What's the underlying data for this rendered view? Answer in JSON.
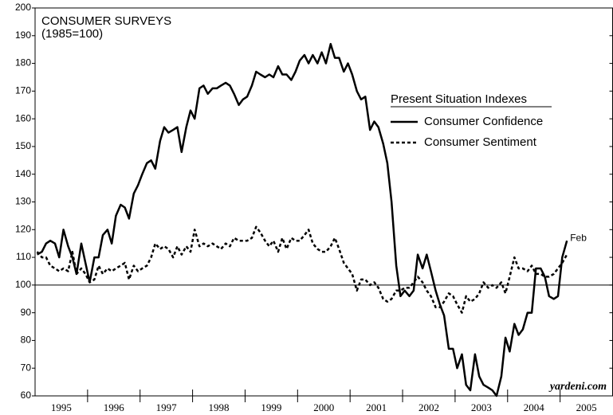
{
  "chart_data": {
    "type": "line",
    "title": "CONSUMER SURVEYS",
    "subtitle": "(1985=100)",
    "legend_title": "Present Situation Indexes",
    "annotation": "Feb",
    "source": "yardeni.com",
    "x": [
      1995.04,
      1995.13,
      1995.21,
      1995.29,
      1995.38,
      1995.46,
      1995.54,
      1995.63,
      1995.71,
      1995.79,
      1995.88,
      1995.96,
      1996.04,
      1996.13,
      1996.21,
      1996.29,
      1996.38,
      1996.46,
      1996.54,
      1996.63,
      1996.71,
      1996.79,
      1996.88,
      1996.96,
      1997.04,
      1997.13,
      1997.21,
      1997.29,
      1997.38,
      1997.46,
      1997.54,
      1997.63,
      1997.71,
      1997.79,
      1997.88,
      1997.96,
      1998.04,
      1998.13,
      1998.21,
      1998.29,
      1998.38,
      1998.46,
      1998.54,
      1998.63,
      1998.71,
      1998.79,
      1998.88,
      1998.96,
      1999.04,
      1999.13,
      1999.21,
      1999.29,
      1999.38,
      1999.46,
      1999.54,
      1999.63,
      1999.71,
      1999.79,
      1999.88,
      1999.96,
      2000.04,
      2000.13,
      2000.21,
      2000.29,
      2000.38,
      2000.46,
      2000.54,
      2000.63,
      2000.71,
      2000.79,
      2000.88,
      2000.96,
      2001.04,
      2001.13,
      2001.21,
      2001.29,
      2001.38,
      2001.46,
      2001.54,
      2001.63,
      2001.71,
      2001.79,
      2001.88,
      2001.96,
      2002.04,
      2002.13,
      2002.21,
      2002.29,
      2002.38,
      2002.46,
      2002.54,
      2002.63,
      2002.71,
      2002.79,
      2002.88,
      2002.96,
      2003.04,
      2003.13,
      2003.21,
      2003.29,
      2003.38,
      2003.46,
      2003.54,
      2003.63,
      2003.71,
      2003.79,
      2003.88,
      2003.96,
      2004.04,
      2004.13,
      2004.21,
      2004.29,
      2004.38,
      2004.46,
      2004.54,
      2004.63,
      2004.71,
      2004.79,
      2004.88,
      2004.96,
      2005.04,
      2005.13
    ],
    "series": [
      {
        "name": "Consumer Confidence",
        "color": "#000000",
        "dash": "solid",
        "values": [
          111,
          112,
          115,
          116,
          115,
          110,
          120,
          114,
          110,
          104,
          115,
          108,
          101,
          110,
          110,
          118,
          120,
          115,
          125,
          129,
          128,
          124,
          133,
          136,
          140,
          144,
          145,
          142,
          152,
          157,
          155,
          156,
          157,
          148,
          157,
          163,
          160,
          171,
          172,
          169,
          171,
          171,
          172,
          173,
          172,
          169,
          165,
          167,
          168,
          172,
          177,
          176,
          175,
          176,
          175,
          179,
          176,
          176,
          174,
          177,
          181,
          183,
          180,
          183,
          180,
          184,
          180,
          187,
          182,
          182,
          177,
          180,
          176,
          170,
          167,
          168,
          156,
          159,
          157,
          151,
          144,
          130,
          107,
          96,
          98,
          96,
          98,
          111,
          106,
          111,
          105,
          98,
          93,
          89,
          77,
          77,
          70,
          75,
          64,
          62,
          75,
          67,
          64,
          63,
          62,
          60,
          67,
          81,
          76,
          86,
          82,
          84,
          90,
          90,
          106,
          106,
          103,
          96,
          95,
          96,
          110,
          116
        ]
      },
      {
        "name": "Consumer Sentiment",
        "color": "#000000",
        "dash": "dashed",
        "values": [
          112,
          110,
          110,
          107,
          106,
          105,
          106,
          105,
          112,
          104,
          106,
          104,
          101,
          102,
          107,
          104,
          106,
          105,
          106,
          107,
          108,
          102,
          107,
          105,
          106,
          107,
          110,
          115,
          113,
          114,
          113,
          110,
          114,
          111,
          114,
          112,
          120,
          114,
          115,
          114,
          115,
          114,
          113,
          115,
          114,
          117,
          116,
          116,
          116,
          117,
          121,
          119,
          116,
          114,
          116,
          112,
          117,
          113,
          117,
          116,
          116,
          118,
          120,
          115,
          113,
          112,
          112,
          114,
          117,
          113,
          108,
          106,
          104,
          98,
          102,
          102,
          100,
          101,
          99,
          95,
          94,
          95,
          98,
          98,
          99,
          99,
          101,
          103,
          101,
          98,
          96,
          92,
          92,
          94,
          97,
          96,
          93,
          90,
          96,
          94,
          95,
          97,
          101,
          99,
          100,
          99,
          101,
          97,
          103,
          110,
          106,
          106,
          105,
          107,
          104,
          104,
          103,
          103,
          104,
          106,
          108,
          111
        ]
      }
    ],
    "reference_line": 100,
    "xlim": [
      1995,
      2006
    ],
    "xticks": [
      {
        "value": 1995.5,
        "label": "1995"
      },
      {
        "value": 1996.5,
        "label": "1996"
      },
      {
        "value": 1997.5,
        "label": "1997"
      },
      {
        "value": 1998.5,
        "label": "1998"
      },
      {
        "value": 1999.5,
        "label": "1999"
      },
      {
        "value": 2000.5,
        "label": "2000"
      },
      {
        "value": 2001.5,
        "label": "2001"
      },
      {
        "value": 2002.5,
        "label": "2002"
      },
      {
        "value": 2003.5,
        "label": "2003"
      },
      {
        "value": 2004.5,
        "label": "2004"
      },
      {
        "value": 2005.5,
        "label": "2005"
      }
    ],
    "xminorticks": [
      1996,
      1997,
      1998,
      1999,
      2000,
      2001,
      2002,
      2003,
      2004,
      2005
    ],
    "ylim": [
      60,
      200
    ],
    "yticks": [
      60,
      70,
      80,
      90,
      100,
      110,
      120,
      130,
      140,
      150,
      160,
      170,
      180,
      190,
      200
    ],
    "grid": false
  }
}
